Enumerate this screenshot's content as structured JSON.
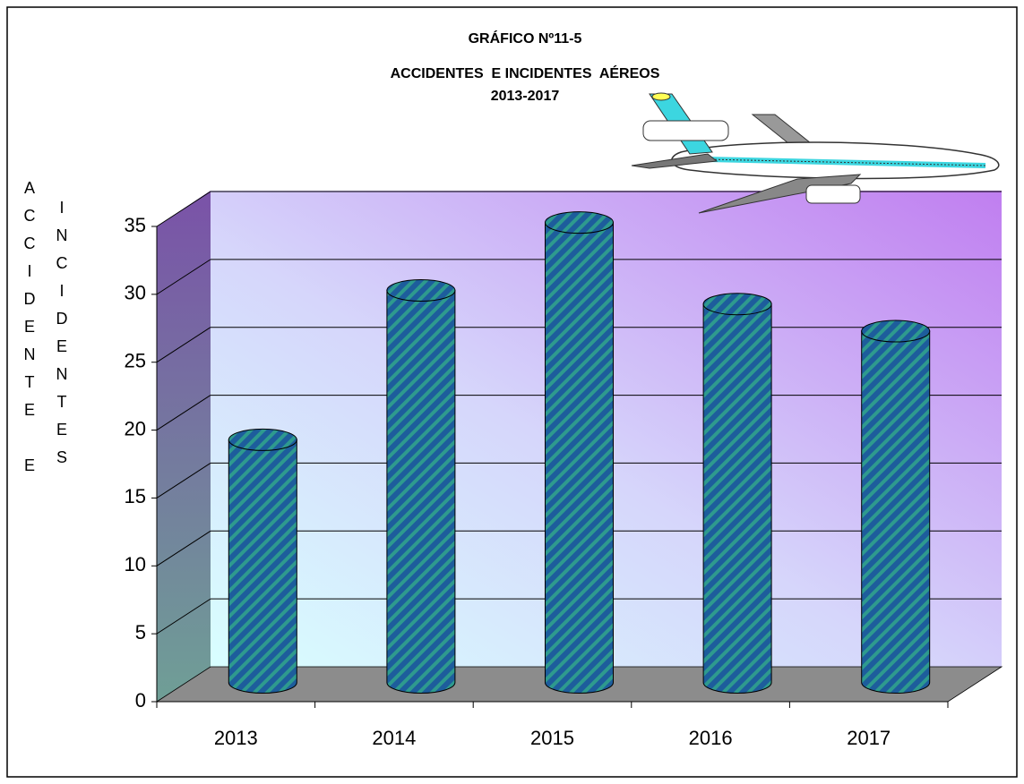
{
  "chart_data": {
    "type": "cylinder_bar",
    "title": "GRÁFICO Nº11-5",
    "subtitle_lines": [
      "ACCIDENTES  E INCIDENTES  AÉREOS",
      "2013-2017"
    ],
    "y_label_lines": [
      "ACCIDENTE E",
      "INCIDENTES"
    ],
    "categories": [
      "2013",
      "2014",
      "2015",
      "2016",
      "2017"
    ],
    "values": [
      18,
      29,
      34,
      28,
      26
    ],
    "color": "#1d5d9c",
    "ylim": [
      0,
      35
    ],
    "yticks": [
      0,
      5,
      10,
      15,
      20,
      25,
      30,
      35
    ],
    "grid": true
  }
}
